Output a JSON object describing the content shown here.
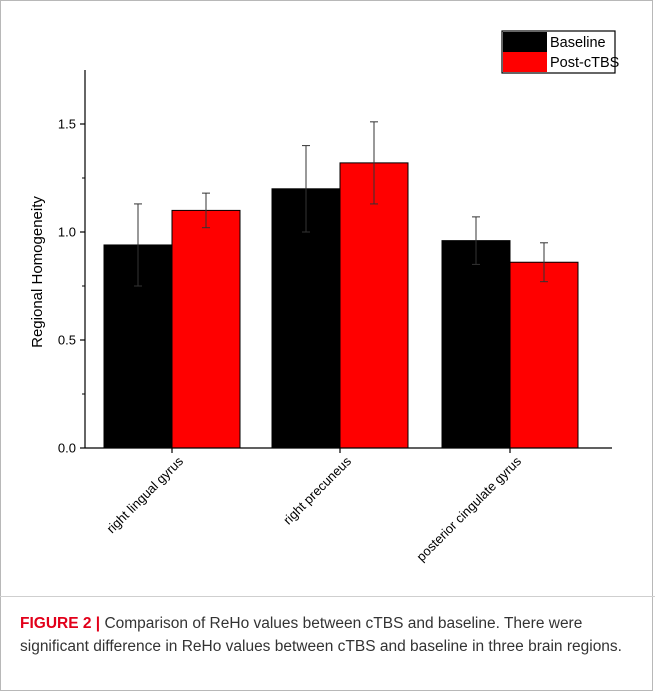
{
  "figure": {
    "label": "FIGURE 2",
    "separator": "|",
    "caption": "Comparison of ReHo values between cTBS and baseline. There were significant difference in ReHo values between cTBS and baseline in three brain regions."
  },
  "colors": {
    "baseline": "#000000",
    "post_ctbs": "#ff0000",
    "axis": "#000000",
    "caption_label": "#e2001a"
  },
  "chart_data": {
    "type": "bar",
    "xlabel": "",
    "ylabel": "Regional Homogeneity",
    "ylim": [
      0,
      1.75
    ],
    "yticks": [
      0.0,
      0.5,
      1.0,
      1.5
    ],
    "ytick_labels": [
      "0.0",
      "0.5",
      "1.0",
      "1.5"
    ],
    "categories": [
      "right lingual gyrus",
      "right precuneus",
      "posterior cingulate gyrus"
    ],
    "series": [
      {
        "name": "Baseline",
        "color": "#000000",
        "values": [
          0.94,
          1.2,
          0.96
        ],
        "errors": [
          0.19,
          0.2,
          0.11
        ]
      },
      {
        "name": "Post-cTBS",
        "color": "#ff0000",
        "values": [
          1.1,
          1.32,
          0.86
        ],
        "errors": [
          0.08,
          0.19,
          0.09
        ]
      }
    ],
    "legend_position": "top-right",
    "grid": false
  }
}
